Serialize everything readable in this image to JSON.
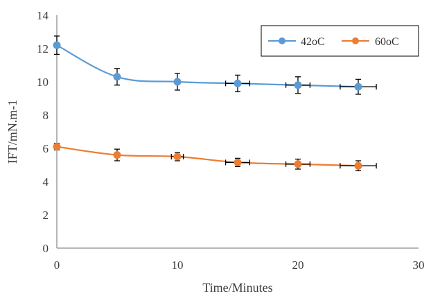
{
  "chart_data": {
    "type": "line",
    "xlabel": "Time/Minutes",
    "ylabel": "IFT/mN.m-1",
    "xlim": [
      0,
      30
    ],
    "ylim": [
      0,
      14
    ],
    "xticks": [
      0,
      10,
      20,
      30
    ],
    "yticks": [
      0,
      2,
      4,
      6,
      8,
      10,
      12,
      14
    ],
    "grid": false,
    "legend_position": "top-right",
    "series": [
      {
        "name": "42oC",
        "color": "#5b9bd5",
        "x": [
          0,
          5,
          10,
          15,
          20,
          25
        ],
        "y": [
          12.2,
          10.3,
          10.0,
          9.9,
          9.8,
          9.7
        ],
        "yerr": [
          0.55,
          0.5,
          0.5,
          0.5,
          0.5,
          0.45
        ],
        "xerr": [
          0,
          0,
          0,
          1,
          1,
          1.5
        ]
      },
      {
        "name": "60oC",
        "color": "#ed7d31",
        "x": [
          0,
          5,
          10,
          15,
          20,
          25
        ],
        "y": [
          6.1,
          5.6,
          5.5,
          5.15,
          5.05,
          4.95
        ],
        "yerr": [
          0.2,
          0.35,
          0.25,
          0.25,
          0.3,
          0.3
        ],
        "xerr": [
          0,
          0,
          0.5,
          1,
          1,
          1.5
        ]
      }
    ]
  }
}
